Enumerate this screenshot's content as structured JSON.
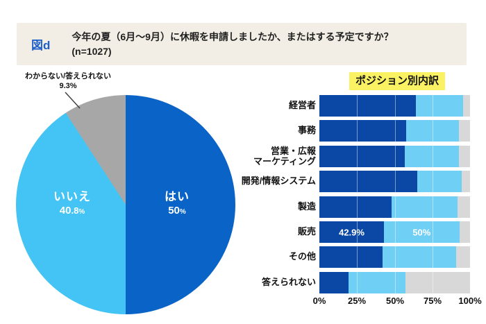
{
  "header": {
    "tag": "図d",
    "question_line1": "今年の夏（6月〜9月）に休暇を申請しましたか、またはする予定ですか？",
    "question_line2": "(n=1027)"
  },
  "colors": {
    "header_bg": "#f2eee5",
    "tag_blue": "#1e5fc9",
    "title_highlight": "#faf163",
    "pie_dark_blue": "#0a63c6",
    "pie_light_blue": "#44c4f4",
    "pie_gray": "#a7a7a7",
    "bar_dark_blue": "#0b47a4",
    "bar_light_blue": "#70cff5",
    "bar_gray": "#d8d8d8"
  },
  "chart_data": [
    {
      "type": "pie",
      "start": "12-oclock-clockwise",
      "slices": [
        {
          "label": "はい",
          "value": 50,
          "display_int": "50",
          "display_dec": "",
          "color": "#0a63c6",
          "label_position": "inside"
        },
        {
          "label": "いいえ",
          "value": 40.8,
          "display_int": "40",
          "display_dec": ".8",
          "color": "#44c4f4",
          "label_position": "inside"
        },
        {
          "label": "わからない/答えられない",
          "value": 9.3,
          "display": "9.3%",
          "color": "#a7a7a7",
          "label_position": "outside"
        }
      ],
      "percent_sign": "%"
    },
    {
      "type": "bar",
      "orientation": "horizontal-stacked",
      "title": "ポジション別内訳",
      "categories": [
        "経営者",
        "事務",
        "営業・広報\nマーケティング",
        "開発/情報システム",
        "製造",
        "販売",
        "その他",
        "答えられない"
      ],
      "series": [
        {
          "name": "dark_blue",
          "color": "#0b47a4",
          "values": [
            64,
            57.5,
            56.5,
            65,
            48,
            42.9,
            42,
            19.5
          ]
        },
        {
          "name": "light_blue",
          "color": "#70cff5",
          "values": [
            31.5,
            35,
            36,
            29.5,
            43.5,
            50,
            49,
            37.5
          ]
        },
        {
          "name": "gray",
          "color": "#d8d8d8",
          "values": [
            4.5,
            7.5,
            7.5,
            5.5,
            8.5,
            7.1,
            9,
            43
          ]
        }
      ],
      "data_labels": [
        {
          "category_index": 5,
          "segment_index": 0,
          "text": "42.9%"
        },
        {
          "category_index": 5,
          "segment_index": 1,
          "text": "50%"
        }
      ],
      "x_ticks": [
        "0%",
        "25%",
        "50%",
        "75%",
        "100%"
      ],
      "xlim": [
        0,
        100
      ],
      "grid": "faint white lines at 25/50/75 over bars"
    }
  ]
}
